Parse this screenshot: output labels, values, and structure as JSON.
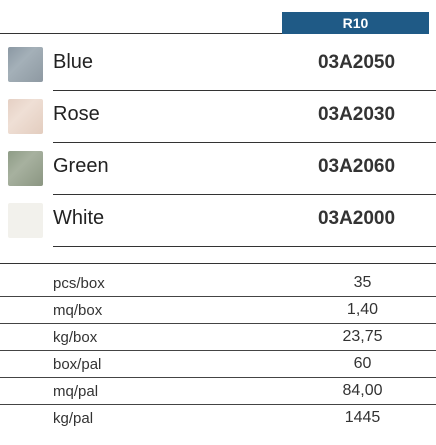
{
  "header": {
    "badge": "R10"
  },
  "colors": [
    {
      "name": "Blue",
      "code": "03A2050",
      "swatch": "#9aa7b0"
    },
    {
      "name": "Rose",
      "code": "03A2030",
      "swatch": "#ead6ca"
    },
    {
      "name": "Green",
      "code": "03A2060",
      "swatch": "#9ba892"
    },
    {
      "name": "White",
      "code": "03A2000",
      "swatch": "#f2f1ec"
    }
  ],
  "packaging": [
    {
      "label": "pcs/box",
      "value": "35"
    },
    {
      "label": "mq/box",
      "value": "1,40"
    },
    {
      "label": "kg/box",
      "value": "23,75"
    },
    {
      "label": "box/pal",
      "value": "60"
    },
    {
      "label": "mq/pal",
      "value": "84,00"
    },
    {
      "label": "kg/pal",
      "value": "1445"
    }
  ]
}
